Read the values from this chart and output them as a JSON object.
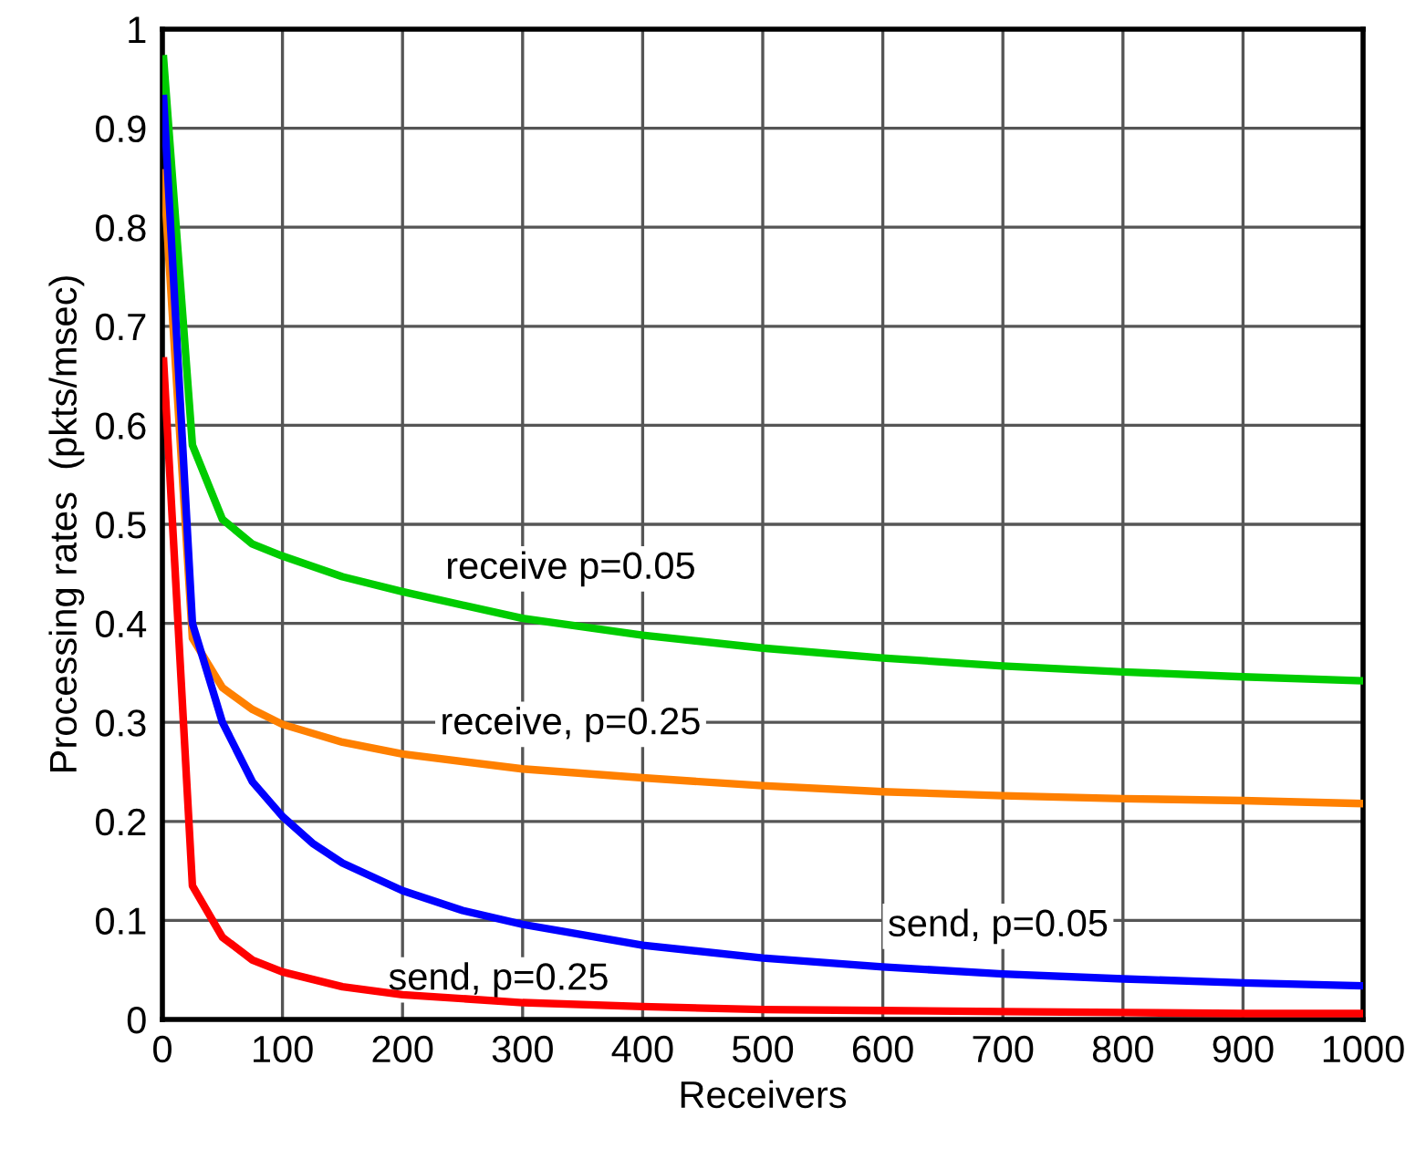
{
  "chart_data": {
    "type": "line",
    "xlabel": "Receivers",
    "ylabel": "Processing rates  (pkts/msec)",
    "xlim": [
      0,
      1000
    ],
    "xticks": [
      0,
      100,
      200,
      300,
      400,
      500,
      600,
      700,
      800,
      900,
      1000
    ],
    "ylim": [
      0,
      1
    ],
    "yticks": [
      0,
      0.1,
      0.2,
      0.3,
      0.4,
      0.5,
      0.6,
      0.7,
      0.8,
      0.9,
      1
    ],
    "grid": true,
    "legend": false,
    "marker": "none",
    "line_style": "solid",
    "series": [
      {
        "name": "receive p=0.05",
        "color": "#00cc00",
        "x": [
          1,
          25,
          50,
          75,
          100,
          150,
          200,
          300,
          400,
          500,
          600,
          700,
          800,
          900,
          1000
        ],
        "values": [
          0.97,
          0.58,
          0.505,
          0.48,
          0.468,
          0.447,
          0.432,
          0.405,
          0.388,
          0.375,
          0.365,
          0.357,
          0.351,
          0.346,
          0.342
        ]
      },
      {
        "name": "receive, p=0.25",
        "color": "#ff8000",
        "x": [
          1,
          25,
          50,
          75,
          100,
          150,
          200,
          300,
          400,
          500,
          600,
          700,
          800,
          900,
          1000
        ],
        "values": [
          0.855,
          0.385,
          0.335,
          0.313,
          0.298,
          0.28,
          0.268,
          0.253,
          0.244,
          0.236,
          0.23,
          0.226,
          0.223,
          0.221,
          0.218
        ]
      },
      {
        "name": "send, p=0.05",
        "color": "#0000ff",
        "x": [
          1,
          25,
          50,
          75,
          100,
          125,
          150,
          200,
          250,
          300,
          400,
          500,
          600,
          700,
          800,
          900,
          1000
        ],
        "values": [
          0.93,
          0.4,
          0.3,
          0.24,
          0.205,
          0.178,
          0.158,
          0.13,
          0.11,
          0.096,
          0.075,
          0.062,
          0.053,
          0.046,
          0.041,
          0.037,
          0.034
        ]
      },
      {
        "name": "send, p=0.25",
        "color": "#ff0000",
        "x": [
          1,
          25,
          50,
          75,
          100,
          150,
          200,
          300,
          400,
          500,
          600,
          700,
          800,
          900,
          1000
        ],
        "values": [
          0.665,
          0.135,
          0.083,
          0.06,
          0.048,
          0.033,
          0.025,
          0.017,
          0.013,
          0.01,
          0.009,
          0.008,
          0.007,
          0.006,
          0.006
        ]
      }
    ]
  }
}
